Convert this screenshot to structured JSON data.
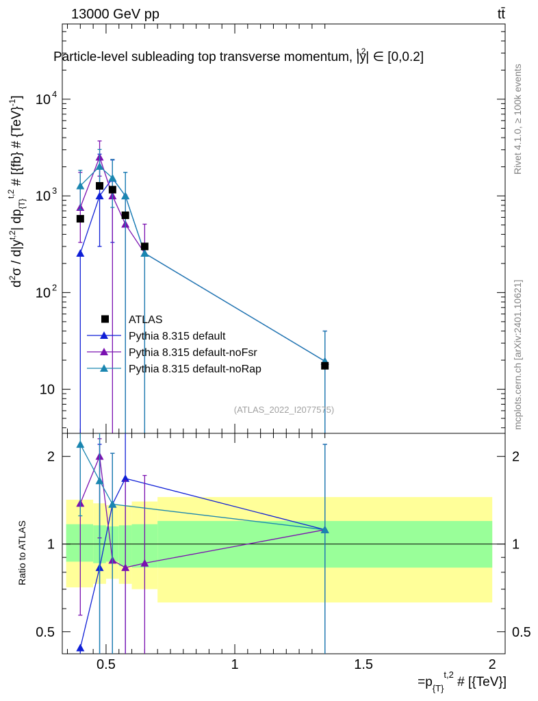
{
  "header": {
    "energy_label": "13000 GeV pp",
    "process_label": "tt̄"
  },
  "side_labels": {
    "rivet": "Rivet 4.1.0, ≥ 100k events",
    "source": "mcplots.cern.ch [arXiv:2401.10621]"
  },
  "watermark": "(ATLAS_2022_I2077575)",
  "colors": {
    "atlas": "#000000",
    "default": "#0f1fd6",
    "noFsr": "#7a10b0",
    "noRap": "#1a86b0",
    "band_outer": "#ffff99",
    "band_inner": "#99ff99"
  },
  "chart_data": [
    {
      "type": "scatter",
      "title": "Particle-level subleading top transverse momentum, |y^{t,2}| ∈ [0,0.2]",
      "title_main": "Particle-level subleading top transverse momentum, |",
      "title_y": "y",
      "title_sup": "t,2",
      "title_tail": "| ∈ [0,0.2]",
      "ylabel": "d²σ / d|y^{t,2}| dp_{T}^{t,2} # [{fb} # {TeV}^{-1}]",
      "yscale": "log",
      "ylim": [
        3.5,
        60000
      ],
      "xlim": [
        0.33,
        2.05
      ],
      "y_ticks": [
        {
          "value": 10,
          "label": "10"
        },
        {
          "value": 100,
          "label": "10",
          "sup": "2"
        },
        {
          "value": 1000,
          "label": "10",
          "sup": "3"
        },
        {
          "value": 10000,
          "label": "10",
          "sup": "4"
        }
      ],
      "legend": [
        {
          "key": "ATLAS",
          "label": "ATLAS"
        },
        {
          "key": "default",
          "label": "Pythia 8.315 default"
        },
        {
          "key": "noFsr",
          "label": "Pythia 8.315 default-noFsr"
        },
        {
          "key": "noRap",
          "label": "Pythia 8.315 default-noRap"
        }
      ],
      "series": [
        {
          "name": "ATLAS",
          "key": "atlas",
          "marker": "square",
          "points": [
            {
              "x": 0.4,
              "y": 580
            },
            {
              "x": 0.475,
              "y": 1270
            },
            {
              "x": 0.525,
              "y": 1160
            },
            {
              "x": 0.575,
              "y": 630
            },
            {
              "x": 0.65,
              "y": 300
            },
            {
              "x": 1.35,
              "y": 17.5
            }
          ]
        },
        {
          "name": "Pythia 8.315 default",
          "key": "default",
          "marker": "triangle",
          "points": [
            {
              "x": 0.4,
              "y": 255,
              "lo": 3.5,
              "hi": 255
            },
            {
              "x": 0.475,
              "y": 1000,
              "lo": 300,
              "hi": 2700
            },
            {
              "x": 0.525,
              "y": 1520,
              "lo": 330,
              "hi": 2350
            },
            {
              "x": 0.575,
              "y": 1000,
              "lo": 3.5,
              "hi": 1750
            },
            {
              "x": 0.65,
              "y": 255,
              "lo": 255,
              "hi": 255
            },
            {
              "x": 1.35,
              "y": 19.5,
              "lo": 3.5,
              "hi": 40
            }
          ]
        },
        {
          "name": "Pythia 8.315 default-noFsr",
          "key": "noFsr",
          "marker": "triangle",
          "points": [
            {
              "x": 0.4,
              "y": 760,
              "lo": 330,
              "hi": 1750
            },
            {
              "x": 0.475,
              "y": 2520,
              "lo": 1600,
              "hi": 3700
            },
            {
              "x": 0.525,
              "y": 1000,
              "lo": 3.5,
              "hi": 2380
            },
            {
              "x": 0.575,
              "y": 510,
              "lo": 3.5,
              "hi": 1020
            },
            {
              "x": 0.65,
              "y": 255,
              "lo": 3.5,
              "hi": 510
            },
            {
              "x": 1.35,
              "y": 19.5,
              "lo": 3.5,
              "hi": 40
            }
          ]
        },
        {
          "name": "Pythia 8.315 default-noRap",
          "key": "noRap",
          "marker": "triangle",
          "points": [
            {
              "x": 0.4,
              "y": 1270,
              "lo": 720,
              "hi": 1840
            },
            {
              "x": 0.475,
              "y": 2020,
              "lo": 1270,
              "hi": 3020
            },
            {
              "x": 0.525,
              "y": 1530,
              "lo": 760,
              "hi": 2380
            },
            {
              "x": 0.575,
              "y": 1000,
              "lo": 3.5,
              "hi": 1750
            },
            {
              "x": 0.65,
              "y": 255,
              "lo": 3.5,
              "hi": 255
            },
            {
              "x": 1.35,
              "y": 19.5,
              "lo": 3.5,
              "hi": 40
            }
          ]
        }
      ]
    },
    {
      "type": "scatter",
      "ylabel": "Ratio to ATLAS",
      "xlabel": "=p_{T}^{t,2} # [{TeV}]",
      "yscale": "log",
      "ylim": [
        0.42,
        2.4
      ],
      "xlim": [
        0.33,
        2.05
      ],
      "x_ticks": [
        {
          "value": 0.5,
          "label": "0.5"
        },
        {
          "value": 1.0,
          "label": "1"
        },
        {
          "value": 1.5,
          "label": "1.5"
        },
        {
          "value": 2.0,
          "label": "2"
        }
      ],
      "y_ticks": [
        {
          "value": 0.5,
          "label": "0.5"
        },
        {
          "value": 1.0,
          "label": "1"
        },
        {
          "value": 2.0,
          "label": "2"
        }
      ],
      "bands": [
        {
          "x_lo": 0.345,
          "x_hi": 0.45,
          "inner": [
            0.87,
            1.17
          ],
          "outer": [
            0.71,
            1.42
          ]
        },
        {
          "x_lo": 0.45,
          "x_hi": 0.5,
          "inner": [
            0.86,
            1.16
          ],
          "outer": [
            0.73,
            1.38
          ]
        },
        {
          "x_lo": 0.5,
          "x_hi": 0.55,
          "inner": [
            0.87,
            1.15
          ],
          "outer": [
            0.76,
            1.36
          ]
        },
        {
          "x_lo": 0.55,
          "x_hi": 0.6,
          "inner": [
            0.84,
            1.16
          ],
          "outer": [
            0.73,
            1.36
          ]
        },
        {
          "x_lo": 0.6,
          "x_hi": 0.7,
          "inner": [
            0.83,
            1.17
          ],
          "outer": [
            0.7,
            1.4
          ]
        },
        {
          "x_lo": 0.7,
          "x_hi": 2.0,
          "inner": [
            0.83,
            1.2
          ],
          "outer": [
            0.63,
            1.45
          ]
        }
      ],
      "reference_y": 1.0,
      "series": [
        {
          "name": "Pythia 8.315 default",
          "key": "default",
          "points": [
            {
              "x": 0.4,
              "y": 0.44,
              "lo": 0.42,
              "hi": 0.44
            },
            {
              "x": 0.475,
              "y": 0.83,
              "lo": 0.42,
              "hi": 2.2
            },
            {
              "x": 0.525,
              "y": 1.37,
              "lo": 0.42,
              "hi": 2.05
            },
            {
              "x": 0.575,
              "y": 1.68,
              "lo": 0.42,
              "hi": 2.4
            },
            {
              "x": 1.35,
              "y": 1.12,
              "lo": 0.42,
              "hi": 2.2
            }
          ]
        },
        {
          "name": "Pythia 8.315 default-noFsr",
          "key": "noFsr",
          "points": [
            {
              "x": 0.4,
              "y": 1.38,
              "lo": 0.57,
              "hi": 2.2
            },
            {
              "x": 0.475,
              "y": 2.0,
              "lo": 1.05,
              "hi": 2.3
            },
            {
              "x": 0.525,
              "y": 0.88,
              "lo": 0.42,
              "hi": 2.05
            },
            {
              "x": 0.575,
              "y": 0.83,
              "lo": 0.42,
              "hi": 1.65
            },
            {
              "x": 0.65,
              "y": 0.86,
              "lo": 0.42,
              "hi": 1.72
            },
            {
              "x": 1.35,
              "y": 1.12,
              "lo": 0.42,
              "hi": 2.2
            }
          ]
        },
        {
          "name": "Pythia 8.315 default-noRap",
          "key": "noRap",
          "points": [
            {
              "x": 0.4,
              "y": 2.2,
              "lo": 1.25,
              "hi": 2.4
            },
            {
              "x": 0.475,
              "y": 1.65,
              "lo": 0.42,
              "hi": 2.4
            },
            {
              "x": 0.525,
              "y": 1.37,
              "lo": 0.42,
              "hi": 2.05
            },
            {
              "x": 1.35,
              "y": 1.12,
              "lo": 0.42,
              "hi": 2.2
            }
          ]
        }
      ]
    }
  ]
}
